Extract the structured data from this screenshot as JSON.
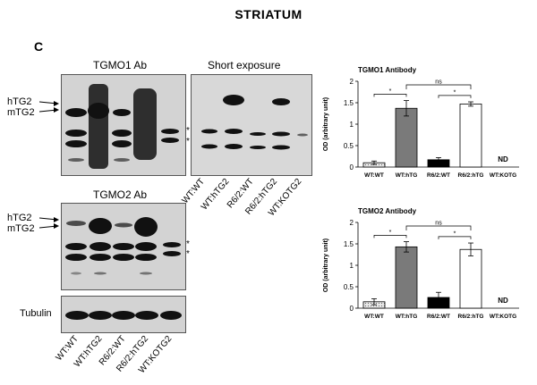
{
  "page_title": "STRIATUM",
  "panel_letter": "C",
  "blots": {
    "tgmo1_title": "TGMO1 Ab",
    "short_title": "Short exposure",
    "tgmo2_title": "TGMO2 Ab",
    "tubulin_label": "Tubulin",
    "band_labels": {
      "htg2": "hTG2",
      "mtg2": "mTG2"
    },
    "star": "*",
    "lanes": [
      "WT:WT",
      "WT:hTG2",
      "R6/2:WT",
      "R6/2:hTG2",
      "WT:KOTG2"
    ]
  },
  "colors": {
    "wt_fill": "#e9e9e9",
    "hwt_fill": "#7a7a7a",
    "r62wt_fill": "#000000",
    "r62h_fill": "#ffffff",
    "band": "#111111"
  },
  "chart_data": [
    {
      "type": "bar",
      "title": "TGMO1 Antibody",
      "ylabel": "OD (arbitrary unit)",
      "ylim": [
        0,
        2
      ],
      "yticks": [
        "0",
        "0.5",
        "1",
        "1.5",
        "2"
      ],
      "categories": [
        "WT:WT",
        "WT:hTG",
        "R6/2:WT",
        "R6/2:hTG",
        "WT:KOTG"
      ],
      "values": [
        0.1,
        1.37,
        0.17,
        1.47,
        null
      ],
      "errors": [
        0.04,
        0.18,
        0.05,
        0.05,
        null
      ],
      "nd_label": "ND",
      "significance": [
        {
          "from": 0,
          "to": 1,
          "label": "*"
        },
        {
          "from": 1,
          "to": 3,
          "label": "ns"
        },
        {
          "from": 2,
          "to": 3,
          "label": "*"
        }
      ]
    },
    {
      "type": "bar",
      "title": "TGMO2 Antibody",
      "ylabel": "OD (arbitrary unit)",
      "ylim": [
        0,
        2
      ],
      "yticks": [
        "0",
        "0.5",
        "1",
        "1.5",
        "2"
      ],
      "categories": [
        "WT:WT",
        "WT:hTG",
        "R6/2:WT",
        "R6/2:hTG",
        "WT:KOTG"
      ],
      "values": [
        0.15,
        1.43,
        0.25,
        1.37,
        null
      ],
      "errors": [
        0.07,
        0.12,
        0.12,
        0.15,
        null
      ],
      "nd_label": "ND",
      "significance": [
        {
          "from": 0,
          "to": 1,
          "label": "*"
        },
        {
          "from": 1,
          "to": 3,
          "label": "ns"
        },
        {
          "from": 2,
          "to": 3,
          "label": "*"
        }
      ]
    }
  ]
}
